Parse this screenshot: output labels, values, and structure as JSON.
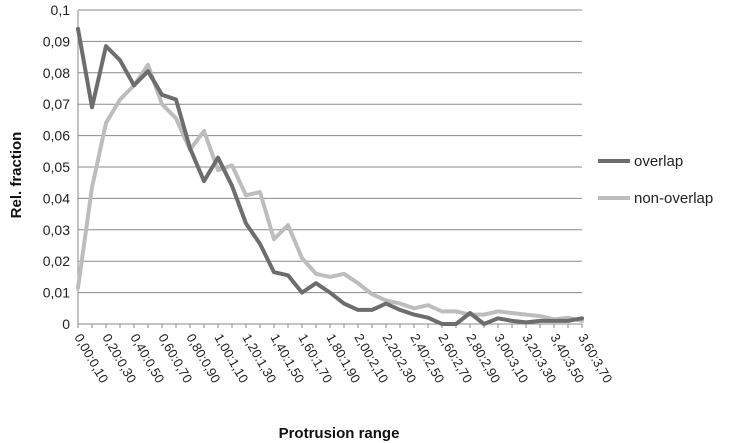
{
  "chart_data": {
    "type": "line",
    "title": "",
    "xlabel": "Protrusion range",
    "ylabel": "Rel. fraction",
    "ylim": [
      0,
      0.1
    ],
    "y_ticks": [
      "0",
      "0,01",
      "0,02",
      "0,03",
      "0,04",
      "0,05",
      "0,06",
      "0,07",
      "0,08",
      "0,09",
      "0,1"
    ],
    "categories": [
      "0.00:0.10",
      "0.10:0.20",
      "0.20:0.30",
      "0.30:0.40",
      "0.40:0.50",
      "0.50:0.60",
      "0.60:0.70",
      "0.70:0.80",
      "0.80:0.90",
      "0.90:1.00",
      "1.00:1.10",
      "1.10:1.20",
      "1.20:1.30",
      "1.30:1.40",
      "1.40:1.50",
      "1.50:1.60",
      "1.60:1.70",
      "1.70:1.80",
      "1.80:1.90",
      "1.90:2.00",
      "2.00:2.10",
      "2.10:2.20",
      "2.20:2.30",
      "2.30:2.40",
      "2.40:2.50",
      "2.50:2.60",
      "2.60:2.70",
      "2.70:2.80",
      "2.80:2.90",
      "2.90:3.00",
      "3.00:3.10",
      "3.10:3.20",
      "3.20:3.30",
      "3.30:3.40",
      "3.40:3.50",
      "3.50:3.60",
      "3.60:3.70"
    ],
    "x_tick_labels": [
      "0.00:0.10",
      "0.20:0.30",
      "0.40:0.50",
      "0.60:0.70",
      "0.80:0.90",
      "1.00:1.10",
      "1.20:1.30",
      "1.40:1.50",
      "1.60:1.70",
      "1.80:1.90",
      "2.00:2.10",
      "2.20:2.30",
      "2.40:2.50",
      "2.60:2.70",
      "2.80:2.90",
      "3.00:3.10",
      "3.20:3.30",
      "3.40:3.50",
      "3.60:3.70"
    ],
    "grid": "horizontal",
    "legend_position": "right",
    "series": [
      {
        "name": "overlap",
        "color": "#6d6d6d",
        "values": [
          0.094,
          0.069,
          0.0885,
          0.084,
          0.076,
          0.0805,
          0.073,
          0.0715,
          0.056,
          0.0455,
          0.053,
          0.044,
          0.032,
          0.0255,
          0.0165,
          0.0155,
          0.01,
          0.013,
          0.01,
          0.0065,
          0.0045,
          0.0045,
          0.0065,
          0.0045,
          0.003,
          0.002,
          0.0,
          0.0,
          0.0035,
          0.0,
          0.0018,
          0.001,
          0.0005,
          0.001,
          0.001,
          0.001,
          0.0018
        ]
      },
      {
        "name": "non-overlap",
        "color": "#bdbdbd",
        "values": [
          0.0115,
          0.0435,
          0.064,
          0.0715,
          0.076,
          0.0825,
          0.07,
          0.0655,
          0.0555,
          0.0615,
          0.049,
          0.0505,
          0.041,
          0.042,
          0.027,
          0.0315,
          0.021,
          0.016,
          0.015,
          0.016,
          0.013,
          0.0095,
          0.0075,
          0.0065,
          0.005,
          0.006,
          0.004,
          0.004,
          0.003,
          0.003,
          0.004,
          0.0035,
          0.003,
          0.0025,
          0.0015,
          0.002,
          0.001
        ]
      }
    ]
  }
}
